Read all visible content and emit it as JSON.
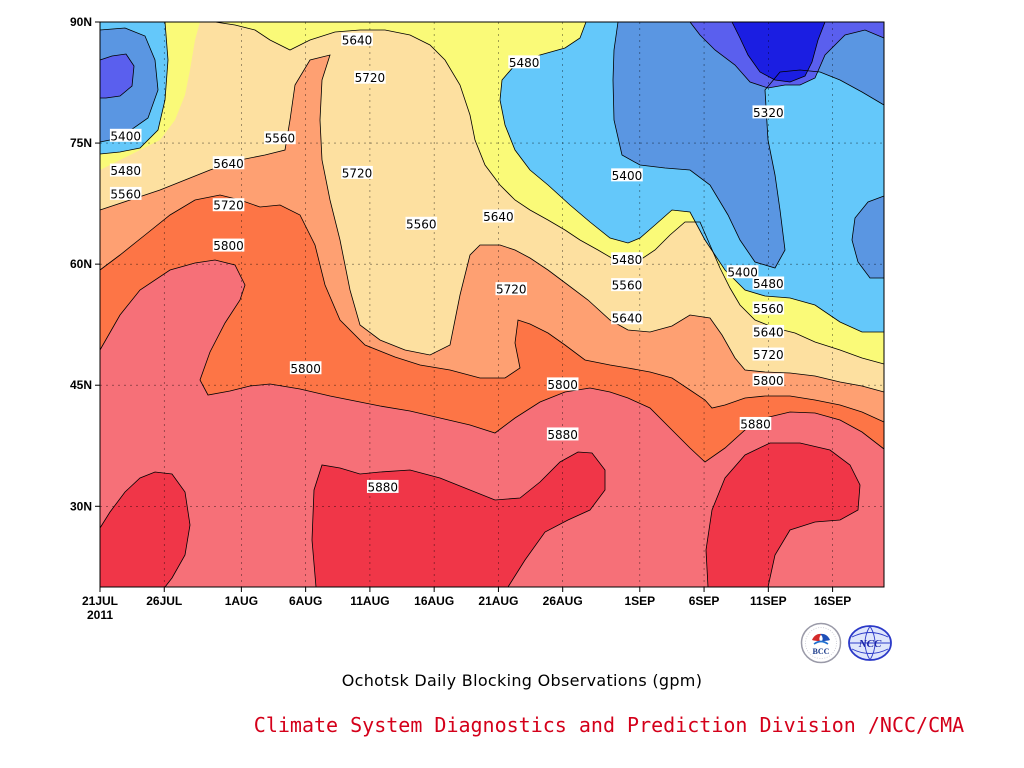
{
  "chart_data": {
    "type": "contour",
    "title": "",
    "caption": "Ochotsk Daily Blocking Observations (gpm)",
    "credit": "Climate System Diagnostics and Prediction Division /NCC/CMA",
    "x_start_year": "2011",
    "x_ticks": [
      "21JUL",
      "26JUL",
      "1AUG",
      "6AUG",
      "11AUG",
      "16AUG",
      "21AUG",
      "26AUG",
      "1SEP",
      "6SEP",
      "11SEP",
      "16SEP"
    ],
    "y_ticks": [
      "90N",
      "75N",
      "60N",
      "45N",
      "30N"
    ],
    "ylim_deg": [
      20,
      90
    ],
    "xlim": [
      "2011-07-21",
      "2011-09-20"
    ],
    "contour_levels": [
      5320,
      5400,
      5480,
      5560,
      5640,
      5720,
      5800,
      5880
    ],
    "fill_colors": {
      "below_5320": "#1b1ee2",
      "5320_5400": "#5a5fee",
      "5400_5480": "#5a96e2",
      "5480_5560": "#64c8fa",
      "5560_5640": "#fafa78",
      "5640_5720": "#fde0a0",
      "5720_5800": "#fea072",
      "5800_5880": "#fd7546",
      "5880_5960": "#f67078",
      "above_5960": "#f03648"
    },
    "contour_labels": [
      {
        "value": "5640",
        "date": "2011-08-10",
        "lat": 87.8
      },
      {
        "value": "5720",
        "date": "2011-08-11",
        "lat": 83.1
      },
      {
        "value": "5480",
        "date": "2011-08-23",
        "lat": 85.0
      },
      {
        "value": "5400",
        "date": "2011-07-23",
        "lat": 75.9
      },
      {
        "value": "5480",
        "date": "2011-07-23",
        "lat": 71.6
      },
      {
        "value": "5560",
        "date": "2011-07-23",
        "lat": 68.7
      },
      {
        "value": "5560",
        "date": "2011-08-04",
        "lat": 75.6
      },
      {
        "value": "5640",
        "date": "2011-07-31",
        "lat": 72.5
      },
      {
        "value": "5720",
        "date": "2011-07-31",
        "lat": 67.3
      },
      {
        "value": "5720",
        "date": "2011-08-10",
        "lat": 71.3
      },
      {
        "value": "5800",
        "date": "2011-07-31",
        "lat": 62.3
      },
      {
        "value": "5560",
        "date": "2011-08-15",
        "lat": 65.0
      },
      {
        "value": "5640",
        "date": "2011-08-21",
        "lat": 65.9
      },
      {
        "value": "5720",
        "date": "2011-08-22",
        "lat": 56.9
      },
      {
        "value": "5800",
        "date": "2011-08-06",
        "lat": 47.1
      },
      {
        "value": "5800",
        "date": "2011-08-26",
        "lat": 45.1
      },
      {
        "value": "5400",
        "date": "2011-08-31",
        "lat": 71.0
      },
      {
        "value": "5320",
        "date": "2011-09-11",
        "lat": 78.8
      },
      {
        "value": "5480",
        "date": "2011-08-31",
        "lat": 60.6
      },
      {
        "value": "5560",
        "date": "2011-08-31",
        "lat": 57.4
      },
      {
        "value": "5640",
        "date": "2011-08-31",
        "lat": 53.3
      },
      {
        "value": "5400",
        "date": "2011-09-09",
        "lat": 59.0
      },
      {
        "value": "5480",
        "date": "2011-09-11",
        "lat": 57.6
      },
      {
        "value": "5560",
        "date": "2011-09-11",
        "lat": 54.5
      },
      {
        "value": "5640",
        "date": "2011-09-11",
        "lat": 51.6
      },
      {
        "value": "5720",
        "date": "2011-09-11",
        "lat": 48.8
      },
      {
        "value": "5800",
        "date": "2011-09-11",
        "lat": 45.6
      },
      {
        "value": "5880",
        "date": "2011-09-10",
        "lat": 40.2
      },
      {
        "value": "5880",
        "date": "2011-08-26",
        "lat": 38.9
      },
      {
        "value": "5880",
        "date": "2011-08-12",
        "lat": 32.4
      }
    ]
  },
  "logos": {
    "bcc": {
      "text": "BCC"
    },
    "ncc": {
      "text": "NCC"
    }
  }
}
